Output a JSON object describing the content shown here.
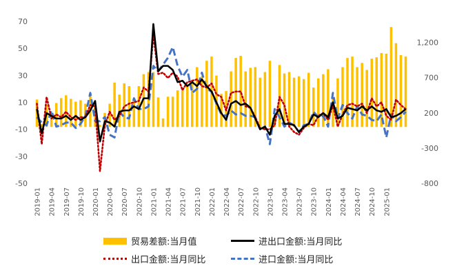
{
  "chart_data": {
    "type": "bar+line",
    "title": "",
    "left_axis": {
      "ylim": [
        -50,
        70
      ],
      "ticks": [
        "70",
        "50",
        "30",
        "10",
        "-10",
        "-30",
        "-50"
      ]
    },
    "right_axis": {
      "ylim": [
        -800,
        1500
      ],
      "ticks": [
        "1,200",
        "700",
        "200",
        "-300",
        "-800"
      ]
    },
    "x_tick_labels": [
      "2019-01",
      "2019-04",
      "2019-07",
      "2019-10",
      "2020-01",
      "2020-04",
      "2020-07",
      "2020-10",
      "2021-01",
      "2021-04",
      "2021-07",
      "2021-10",
      "2022-01",
      "2022-04",
      "2022-07",
      "2022-10",
      "2023-01",
      "2023-04",
      "2023-07",
      "2023-10",
      "2024-01",
      "2024-04",
      "2024-07",
      "2024-10",
      "2025-01"
    ],
    "months": [
      "2019-01",
      "2019-02",
      "2019-03",
      "2019-04",
      "2019-05",
      "2019-06",
      "2019-07",
      "2019-08",
      "2019-09",
      "2019-10",
      "2019-11",
      "2019-12",
      "2020-01",
      "2020-02",
      "2020-03",
      "2020-04",
      "2020-05",
      "2020-06",
      "2020-07",
      "2020-08",
      "2020-09",
      "2020-10",
      "2020-11",
      "2020-12",
      "2021-01",
      "2021-02",
      "2021-03",
      "2021-04",
      "2021-05",
      "2021-06",
      "2021-07",
      "2021-08",
      "2021-09",
      "2021-10",
      "2021-11",
      "2021-12",
      "2022-01",
      "2022-02",
      "2022-03",
      "2022-04",
      "2022-05",
      "2022-06",
      "2022-07",
      "2022-08",
      "2022-09",
      "2022-10",
      "2022-11",
      "2022-12",
      "2023-01",
      "2023-02",
      "2023-03",
      "2023-04",
      "2023-05",
      "2023-06",
      "2023-07",
      "2023-08",
      "2023-09",
      "2023-10",
      "2023-11",
      "2023-12",
      "2024-01",
      "2024-02",
      "2024-03",
      "2024-04",
      "2024-05",
      "2024-06",
      "2024-07",
      "2024-08",
      "2024-09",
      "2024-10",
      "2024-11",
      "2024-12",
      "2025-01",
      "2025-02",
      "2025-03",
      "2025-04",
      "2025-05"
    ],
    "series": [
      {
        "name": "贸易差额:当月值",
        "type": "bar",
        "axis": "right",
        "color": "#FFC000",
        "values": [
          390,
          40,
          320,
          180,
          340,
          410,
          450,
          400,
          360,
          380,
          330,
          460,
          280,
          30,
          200,
          330,
          630,
          460,
          620,
          580,
          370,
          580,
          750,
          780,
          780,
          420,
          120,
          430,
          430,
          520,
          560,
          580,
          670,
          850,
          720,
          940,
          1000,
          730,
          470,
          510,
          790,
          980,
          1010,
          790,
          840,
          850,
          700,
          780,
          940,
          120,
          880,
          760,
          780,
          700,
          720,
          680,
          770,
          560,
          690,
          750,
          820,
          400,
          690,
          850,
          980,
          1000,
          850,
          910,
          810,
          970,
          990,
          1050,
          1040,
          1420,
          1190,
          1020,
          1000
        ]
      },
      {
        "name": "进出口金额:当月同比",
        "type": "line",
        "axis": "left",
        "color": "#000000",
        "style": "solid",
        "values": [
          5,
          -13,
          2,
          0,
          -2,
          -2,
          0,
          -3,
          0,
          -3,
          -1,
          4,
          11,
          -19,
          -4,
          -5,
          -8,
          3,
          4,
          4,
          7,
          5,
          13,
          13,
          68,
          33,
          37,
          37,
          34,
          25,
          26,
          22,
          25,
          22,
          27,
          22,
          18,
          10,
          2,
          -3,
          9,
          11,
          8,
          9,
          6,
          -2,
          -10,
          -8,
          -14,
          0,
          5,
          -6,
          -6,
          -7,
          -12,
          -8,
          -6,
          1,
          -1,
          2,
          -1,
          10,
          -2,
          0,
          6,
          5,
          4,
          7,
          4,
          7,
          4,
          3,
          5,
          -1,
          0,
          2,
          5
        ]
      },
      {
        "name": "出口金额:当月同比",
        "type": "line",
        "axis": "left",
        "color": "#C00000",
        "style": "dotted",
        "values": [
          9,
          -21,
          14,
          -2,
          1,
          -1,
          3,
          -1,
          -3,
          -1,
          -1,
          8,
          7,
          -41,
          -7,
          3,
          -3,
          0,
          7,
          9,
          10,
          11,
          21,
          18,
          60,
          31,
          32,
          28,
          32,
          29,
          19,
          25,
          26,
          27,
          22,
          21,
          24,
          16,
          14,
          4,
          17,
          18,
          18,
          7,
          6,
          -1,
          -9,
          -10,
          -10,
          -7,
          14,
          8,
          -8,
          -12,
          -14,
          -9,
          -6,
          -7,
          0,
          2,
          -3,
          8,
          -8,
          1,
          8,
          9,
          7,
          9,
          2,
          13,
          7,
          10,
          0,
          -3,
          12,
          8,
          5
        ]
      },
      {
        "name": "进口金额:当月同比",
        "type": "line",
        "axis": "left",
        "color": "#4472C4",
        "style": "dashed",
        "values": [
          -1,
          -5,
          -7,
          4,
          -8,
          -7,
          -5,
          -5,
          -9,
          -6,
          0,
          17,
          -4,
          -4,
          -1,
          -14,
          -16,
          3,
          -1,
          -2,
          13,
          5,
          5,
          7,
          37,
          33,
          38,
          43,
          51,
          37,
          29,
          34,
          17,
          20,
          32,
          20,
          18,
          9,
          1,
          0,
          4,
          1,
          2,
          0,
          0,
          -1,
          -10,
          -8,
          -21,
          5,
          -1,
          -8,
          -5,
          -7,
          -12,
          -7,
          -6,
          3,
          -1,
          0,
          -8,
          17,
          -2,
          8,
          2,
          -2,
          7,
          1,
          0,
          -3,
          -4,
          1,
          -16,
          1,
          -4,
          -1,
          3
        ]
      }
    ],
    "legend_position": "bottom",
    "grid": false
  }
}
